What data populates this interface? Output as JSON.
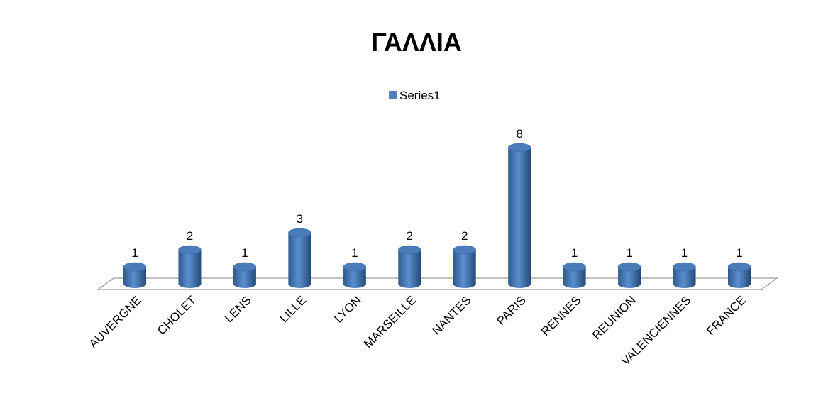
{
  "chart_data": {
    "type": "bar3d",
    "title": "ΓΑΛΛΙΑ",
    "categories": [
      "AUVERGNE",
      "CHOLET",
      "LENS",
      "LILLE",
      "LYON",
      "MARSEILLE",
      "NANTES",
      "PARIS",
      "RENNES",
      "REUNION",
      "VALENCIENNES",
      "FRANCE"
    ],
    "series": [
      {
        "name": "Series1",
        "color": "#4f81bd",
        "values": [
          1,
          2,
          1,
          3,
          1,
          2,
          2,
          8,
          1,
          1,
          1,
          1
        ]
      }
    ],
    "legend": "top",
    "data_labels": true
  }
}
